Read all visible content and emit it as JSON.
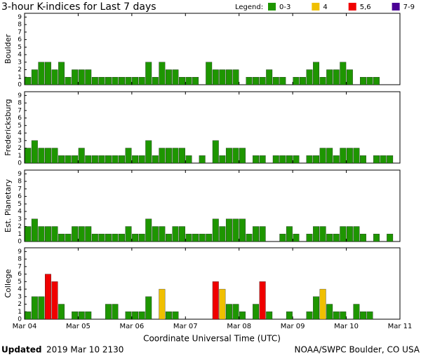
{
  "chart_data": {
    "type": "bar",
    "title": "3-hour K-indices for Last 7 days",
    "legend_title": "Legend:",
    "legend": [
      {
        "label": "0-3",
        "color": "#1e9600"
      },
      {
        "label": "4",
        "color": "#f0c000"
      },
      {
        "label": "5,6",
        "color": "#f00000"
      },
      {
        "label": "7-9",
        "color": "#4b0096"
      }
    ],
    "x_labels": [
      "Mar 04",
      "Mar 05",
      "Mar 06",
      "Mar 07",
      "Mar 08",
      "Mar 09",
      "Mar 10",
      "Mar 11"
    ],
    "xlabel": "Coordinate Universal Time (UTC)",
    "ylim": [
      0,
      9.5
    ],
    "yticks": [
      0,
      1,
      2,
      3,
      4,
      5,
      6,
      7,
      8,
      9
    ],
    "panels": [
      {
        "name": "Boulder",
        "values": [
          1,
          2,
          3,
          3,
          2,
          3,
          1,
          2,
          2,
          2,
          1,
          1,
          1,
          1,
          1,
          1,
          1,
          1,
          3,
          1,
          3,
          2,
          2,
          1,
          1,
          1,
          0,
          3,
          2,
          2,
          2,
          2,
          0,
          1,
          1,
          1,
          2,
          1,
          1,
          0,
          1,
          1,
          2,
          3,
          1,
          2,
          2,
          3,
          2,
          0,
          1,
          1,
          1,
          0,
          0,
          0
        ]
      },
      {
        "name": "Fredericksburg",
        "values": [
          2,
          3,
          2,
          2,
          2,
          1,
          1,
          1,
          2,
          1,
          1,
          1,
          1,
          1,
          1,
          2,
          1,
          1,
          3,
          1,
          2,
          2,
          2,
          2,
          1,
          0,
          1,
          0,
          3,
          1,
          2,
          2,
          2,
          0,
          1,
          1,
          0,
          1,
          1,
          1,
          1,
          0,
          1,
          1,
          2,
          2,
          1,
          2,
          2,
          2,
          1,
          0,
          1,
          1,
          1,
          0
        ]
      },
      {
        "name": "Est. Planetary",
        "values": [
          2,
          3,
          2,
          2,
          2,
          1,
          1,
          2,
          2,
          2,
          1,
          1,
          1,
          1,
          1,
          2,
          1,
          1,
          3,
          2,
          2,
          1,
          2,
          2,
          1,
          1,
          1,
          1,
          3,
          2,
          3,
          3,
          3,
          1,
          2,
          2,
          0,
          0,
          1,
          2,
          1,
          0,
          1,
          2,
          2,
          1,
          1,
          2,
          2,
          2,
          1,
          0,
          1,
          0,
          1,
          0
        ]
      },
      {
        "name": "College",
        "values": [
          1,
          3,
          3,
          6,
          5,
          2,
          0,
          1,
          1,
          1,
          0,
          0,
          2,
          2,
          0,
          1,
          1,
          1,
          3,
          0,
          4,
          1,
          1,
          0,
          0,
          0,
          0,
          0,
          5,
          4,
          2,
          2,
          1,
          0,
          2,
          5,
          1,
          0,
          0,
          1,
          0,
          0,
          1,
          3,
          4,
          2,
          1,
          1,
          0,
          2,
          1,
          1,
          0,
          0,
          0,
          0
        ]
      }
    ]
  },
  "footer": {
    "updated_label": "Updated",
    "updated": "2019 Mar 10 2130",
    "source": "NOAA/SWPC Boulder, CO USA"
  }
}
